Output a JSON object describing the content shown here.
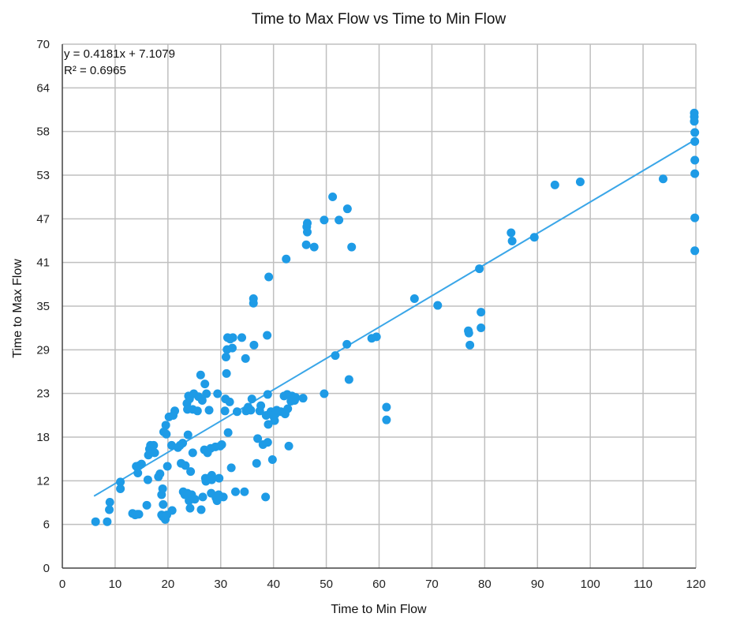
{
  "chart_data": {
    "type": "scatter",
    "title": "Time to Max Flow vs Time to Min Flow",
    "xlabel": "Time to Min Flow",
    "ylabel": "Time to Max Flow",
    "xlim": [
      0,
      120
    ],
    "ylim": [
      0,
      70
    ],
    "xticks": [
      "0",
      "10",
      "20",
      "30",
      "40",
      "50",
      "60",
      "70",
      "80",
      "90",
      "100",
      "110",
      "120"
    ],
    "xtick_values": [
      0,
      10,
      20,
      30,
      40,
      50,
      60,
      70,
      80,
      90,
      100,
      110,
      120
    ],
    "yticks": [
      "0",
      "6",
      "12",
      "18",
      "23",
      "29",
      "35",
      "41",
      "47",
      "53",
      "58",
      "64",
      "70"
    ],
    "ytick_values": [
      0,
      5.833,
      11.667,
      17.5,
      23.333,
      29.167,
      35,
      40.833,
      46.667,
      52.5,
      58.333,
      64.167,
      70
    ],
    "grid": true,
    "legend": "none",
    "colors": {
      "point": "#1e9be6",
      "trendline": "#3aa6e8",
      "grid": "#bfbfbf",
      "axis": "#444444"
    },
    "trendline": {
      "type": "linear",
      "slope": 0.4181,
      "intercept": 7.1079,
      "x_range": [
        6,
        120
      ],
      "equation_text": "y = 0.4181x + 7.1079",
      "r2_text": "R² = 0.6965"
    },
    "points": [
      [
        6.3,
        6.2
      ],
      [
        8.5,
        6.2
      ],
      [
        8.9,
        7.8
      ],
      [
        9.0,
        8.8
      ],
      [
        11.0,
        10.6
      ],
      [
        11.0,
        11.5
      ],
      [
        13.3,
        7.3
      ],
      [
        13.8,
        7.1
      ],
      [
        14.2,
        7.2
      ],
      [
        14.5,
        7.2
      ],
      [
        14.0,
        13.6
      ],
      [
        14.3,
        12.7
      ],
      [
        14.6,
        13.7
      ],
      [
        15.0,
        13.9
      ],
      [
        16.0,
        8.4
      ],
      [
        16.2,
        11.8
      ],
      [
        16.3,
        15.1
      ],
      [
        16.5,
        15.9
      ],
      [
        16.7,
        16.4
      ],
      [
        17.3,
        16.4
      ],
      [
        17.5,
        15.4
      ],
      [
        18.2,
        12.2
      ],
      [
        18.5,
        12.6
      ],
      [
        18.8,
        9.8
      ],
      [
        18.8,
        7.1
      ],
      [
        19.0,
        10.6
      ],
      [
        19.0,
        6.9
      ],
      [
        19.1,
        8.5
      ],
      [
        19.2,
        18.2
      ],
      [
        19.5,
        6.5
      ],
      [
        19.6,
        19.1
      ],
      [
        19.7,
        17.9
      ],
      [
        19.8,
        7.1
      ],
      [
        19.9,
        13.6
      ],
      [
        20.2,
        20.2
      ],
      [
        20.7,
        16.4
      ],
      [
        20.8,
        7.7
      ],
      [
        21.0,
        20.4
      ],
      [
        21.3,
        21.0
      ],
      [
        21.9,
        16.1
      ],
      [
        22.3,
        16.4
      ],
      [
        22.5,
        14.0
      ],
      [
        22.8,
        16.7
      ],
      [
        22.9,
        10.2
      ],
      [
        23.2,
        9.8
      ],
      [
        23.3,
        13.7
      ],
      [
        23.6,
        22.0
      ],
      [
        23.7,
        21.2
      ],
      [
        23.7,
        10.0
      ],
      [
        23.8,
        17.8
      ],
      [
        23.9,
        23.0
      ],
      [
        24.0,
        9.0
      ],
      [
        24.1,
        22.6
      ],
      [
        24.2,
        8.0
      ],
      [
        24.3,
        12.9
      ],
      [
        24.5,
        9.8
      ],
      [
        24.7,
        21.2
      ],
      [
        24.7,
        15.4
      ],
      [
        24.9,
        23.3
      ],
      [
        25.1,
        9.2
      ],
      [
        25.6,
        21.0
      ],
      [
        25.8,
        22.9
      ],
      [
        26.2,
        25.8
      ],
      [
        26.3,
        7.8
      ],
      [
        26.5,
        22.4
      ],
      [
        26.6,
        9.5
      ],
      [
        26.9,
        15.8
      ],
      [
        27.0,
        24.6
      ],
      [
        27.1,
        12.0
      ],
      [
        27.2,
        11.6
      ],
      [
        27.3,
        23.3
      ],
      [
        27.5,
        15.4
      ],
      [
        27.8,
        21.1
      ],
      [
        28.1,
        16.0
      ],
      [
        28.2,
        10.0
      ],
      [
        28.3,
        12.4
      ],
      [
        28.3,
        11.8
      ],
      [
        29.0,
        16.2
      ],
      [
        29.1,
        9.4
      ],
      [
        29.3,
        9.0
      ],
      [
        29.4,
        23.3
      ],
      [
        29.6,
        9.8
      ],
      [
        29.7,
        12.0
      ],
      [
        29.9,
        16.3
      ],
      [
        30.2,
        16.5
      ],
      [
        30.5,
        9.5
      ],
      [
        30.8,
        21.0
      ],
      [
        30.9,
        22.6
      ],
      [
        31.0,
        28.2
      ],
      [
        31.1,
        26.0
      ],
      [
        31.2,
        29.2
      ],
      [
        31.3,
        30.8
      ],
      [
        31.4,
        18.1
      ],
      [
        31.7,
        22.2
      ],
      [
        31.8,
        30.6
      ],
      [
        32.0,
        13.4
      ],
      [
        32.2,
        29.4
      ],
      [
        32.3,
        30.8
      ],
      [
        32.8,
        10.2
      ],
      [
        33.1,
        20.9
      ],
      [
        34.0,
        30.8
      ],
      [
        34.5,
        10.2
      ],
      [
        34.7,
        28.0
      ],
      [
        34.8,
        21.0
      ],
      [
        35.2,
        21.5
      ],
      [
        35.7,
        21.1
      ],
      [
        35.9,
        22.6
      ],
      [
        36.2,
        36.0
      ],
      [
        36.2,
        35.4
      ],
      [
        36.3,
        29.8
      ],
      [
        36.8,
        14.0
      ],
      [
        37.0,
        17.3
      ],
      [
        37.4,
        21.0
      ],
      [
        37.6,
        21.7
      ],
      [
        38.0,
        16.5
      ],
      [
        38.5,
        9.5
      ],
      [
        38.6,
        20.4
      ],
      [
        38.9,
        16.8
      ],
      [
        38.8,
        31.1
      ],
      [
        38.9,
        23.2
      ],
      [
        39.0,
        19.2
      ],
      [
        39.1,
        38.9
      ],
      [
        39.5,
        20.9
      ],
      [
        39.8,
        14.5
      ],
      [
        40.0,
        20.3
      ],
      [
        40.2,
        19.7
      ],
      [
        40.3,
        20.5
      ],
      [
        40.6,
        21.1
      ],
      [
        41.4,
        20.9
      ],
      [
        42.0,
        23.0
      ],
      [
        42.2,
        20.6
      ],
      [
        42.4,
        41.3
      ],
      [
        42.6,
        23.2
      ],
      [
        42.7,
        21.3
      ],
      [
        42.9,
        16.3
      ],
      [
        43.3,
        22.3
      ],
      [
        43.5,
        23.0
      ],
      [
        43.7,
        22.7
      ],
      [
        44.0,
        22.4
      ],
      [
        44.2,
        22.8
      ],
      [
        45.6,
        22.7
      ],
      [
        46.2,
        43.2
      ],
      [
        46.3,
        45.6
      ],
      [
        46.4,
        44.9
      ],
      [
        46.4,
        46.1
      ],
      [
        47.7,
        42.9
      ],
      [
        49.6,
        46.5
      ],
      [
        49.6,
        23.3
      ],
      [
        51.2,
        49.6
      ],
      [
        51.7,
        28.4
      ],
      [
        52.4,
        46.5
      ],
      [
        53.9,
        29.9
      ],
      [
        54.0,
        48.0
      ],
      [
        54.3,
        25.2
      ],
      [
        54.8,
        42.9
      ],
      [
        58.6,
        30.7
      ],
      [
        59.5,
        30.9
      ],
      [
        61.4,
        21.5
      ],
      [
        61.4,
        19.8
      ],
      [
        66.7,
        36.0
      ],
      [
        71.1,
        35.1
      ],
      [
        76.9,
        31.7
      ],
      [
        77.0,
        31.4
      ],
      [
        77.2,
        29.8
      ],
      [
        79.0,
        40.0
      ],
      [
        79.3,
        32.1
      ],
      [
        79.3,
        34.2
      ],
      [
        85.0,
        44.8
      ],
      [
        85.2,
        43.7
      ],
      [
        89.4,
        44.2
      ],
      [
        93.3,
        51.2
      ],
      [
        98.1,
        51.6
      ],
      [
        113.8,
        52.0
      ],
      [
        119.7,
        60.8
      ],
      [
        119.7,
        60.3
      ],
      [
        119.7,
        59.7
      ],
      [
        119.8,
        58.2
      ],
      [
        119.8,
        57.0
      ],
      [
        119.8,
        54.5
      ],
      [
        119.8,
        52.7
      ],
      [
        119.8,
        46.8
      ],
      [
        119.8,
        42.4
      ]
    ]
  }
}
